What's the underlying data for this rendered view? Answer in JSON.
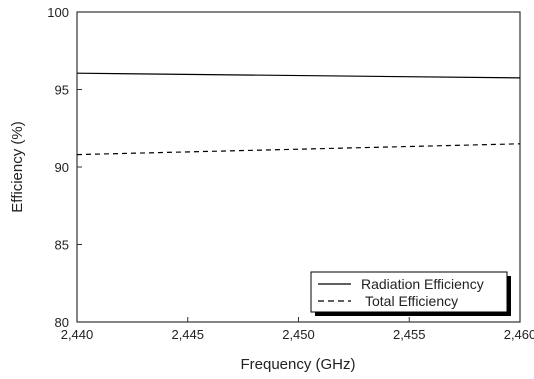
{
  "chart_data": {
    "type": "line",
    "xlabel": "Frequency (GHz)",
    "ylabel": "Efficiency  (%)",
    "xlim": [
      2.44,
      2.46
    ],
    "ylim": [
      80,
      100
    ],
    "x_ticks": [
      2.44,
      2.445,
      2.45,
      2.455,
      2.46
    ],
    "x_tick_labels": [
      "2,440",
      "2,445",
      "2,450",
      "2,455",
      "2,460"
    ],
    "y_ticks": [
      80,
      85,
      90,
      95,
      100
    ],
    "y_tick_labels": [
      "80",
      "85",
      "90",
      "95",
      "100"
    ],
    "grid": false,
    "legend_position": "bottom-right",
    "series": [
      {
        "name": "Radiation Efficiency",
        "style": "solid",
        "color": "#000000",
        "x": [
          2.44,
          2.46
        ],
        "y": [
          96.05,
          95.75
        ]
      },
      {
        "name": "Total Efficiency",
        "style": "dashed",
        "color": "#000000",
        "x": [
          2.44,
          2.46
        ],
        "y": [
          90.8,
          91.5
        ]
      }
    ]
  }
}
